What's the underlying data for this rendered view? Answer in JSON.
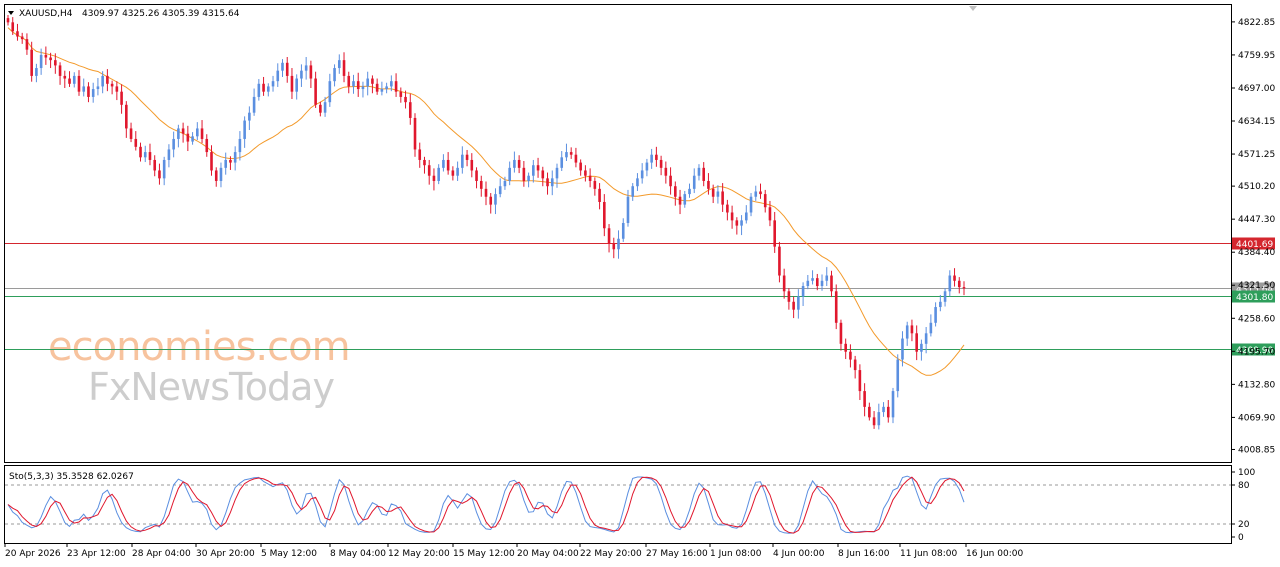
{
  "chart_data": [
    {
      "type": "candlestick",
      "header": {
        "symbol": "XAUUSD,H4",
        "ohlc": "4309.97 4325.26 4305.39 4315.64"
      },
      "ylim": [
        3985,
        4855
      ],
      "y_ticks": [
        "4822.85",
        "4759.95",
        "4697.00",
        "4634.15",
        "4571.25",
        "4510.20",
        "4447.30",
        "4384.40",
        "4321.50",
        "4258.60",
        "4195.70",
        "4132.80",
        "4069.90",
        "4008.85"
      ],
      "x_ticks": [
        "20 Apr 2026",
        "23 Apr 12:00",
        "28 Apr 04:00",
        "30 Apr 20:00",
        "5 May 12:00",
        "8 May 04:00",
        "12 May 20:00",
        "15 May 12:00",
        "20 May 04:00",
        "22 May 20:00",
        "27 May 16:00",
        "1 Jun 08:00",
        "4 Jun 00:00",
        "8 Jun 16:00",
        "11 Jun 08:00",
        "16 Jun 00:00"
      ],
      "levels": [
        {
          "label": "4401.69",
          "value": 4401.69,
          "color": "#d4262e"
        },
        {
          "label": "4315.64",
          "value": 4315.64,
          "color": "#9a9a9a"
        },
        {
          "label": "4301.80",
          "value": 4301.8,
          "color": "#2e9e5b"
        },
        {
          "label": "4200.90",
          "value": 4200.9,
          "color": "#2e9e5b"
        }
      ],
      "bull_color": "#5b8fe0",
      "bear_color": "#e0172d",
      "ma_color": "#f39a2b",
      "closes": [
        4822,
        4805,
        4795,
        4790,
        4770,
        4720,
        4735,
        4760,
        4755,
        4750,
        4740,
        4720,
        4715,
        4705,
        4720,
        4690,
        4700,
        4680,
        4695,
        4700,
        4720,
        4705,
        4700,
        4690,
        4665,
        4620,
        4600,
        4585,
        4565,
        4575,
        4560,
        4540,
        4525,
        4560,
        4580,
        4600,
        4620,
        4610,
        4595,
        4605,
        4620,
        4600,
        4575,
        4540,
        4520,
        4545,
        4560,
        4555,
        4575,
        4600,
        4635,
        4650,
        4680,
        4705,
        4690,
        4700,
        4710,
        4730,
        4745,
        4720,
        4690,
        4715,
        4730,
        4740,
        4715,
        4665,
        4650,
        4670,
        4710,
        4735,
        4750,
        4720,
        4700,
        4710,
        4695,
        4700,
        4715,
        4705,
        4690,
        4695,
        4700,
        4710,
        4690,
        4680,
        4670,
        4640,
        4580,
        4560,
        4550,
        4530,
        4520,
        4545,
        4560,
        4540,
        4530,
        4545,
        4570,
        4560,
        4540,
        4520,
        4505,
        4490,
        4475,
        4495,
        4510,
        4520,
        4545,
        4560,
        4545,
        4520,
        4530,
        4550,
        4540,
        4525,
        4510,
        4525,
        4545,
        4565,
        4575,
        4570,
        4555,
        4540,
        4530,
        4520,
        4505,
        4480,
        4430,
        4400,
        4390,
        4410,
        4440,
        4490,
        4510,
        4525,
        4540,
        4555,
        4570,
        4560,
        4545,
        4530,
        4510,
        4490,
        4475,
        4495,
        4505,
        4530,
        4545,
        4520,
        4505,
        4490,
        4500,
        4475,
        4460,
        4445,
        4435,
        4445,
        4460,
        4490,
        4500,
        4495,
        4470,
        4445,
        4395,
        4340,
        4310,
        4290,
        4275,
        4300,
        4320,
        4330,
        4335,
        4320,
        4330,
        4340,
        4310,
        4250,
        4210,
        4195,
        4180,
        4160,
        4120,
        4090,
        4070,
        4055,
        4080,
        4090,
        4070,
        4120,
        4180,
        4220,
        4245,
        4230,
        4195,
        4210,
        4230,
        4250,
        4280,
        4290,
        4310,
        4340,
        4330,
        4318,
        4315.64
      ]
    },
    {
      "type": "line",
      "title": "Sto(5,3,3) 35.3528 62.0267",
      "ylim": [
        0,
        100
      ],
      "y_ticks": [
        "100",
        "80",
        "20",
        "0"
      ],
      "series": [
        {
          "color": "#5b8fe0"
        },
        {
          "color": "#e0172d"
        }
      ]
    }
  ],
  "watermark": {
    "line1": "economies.com",
    "line2": "FxNewsToday"
  }
}
